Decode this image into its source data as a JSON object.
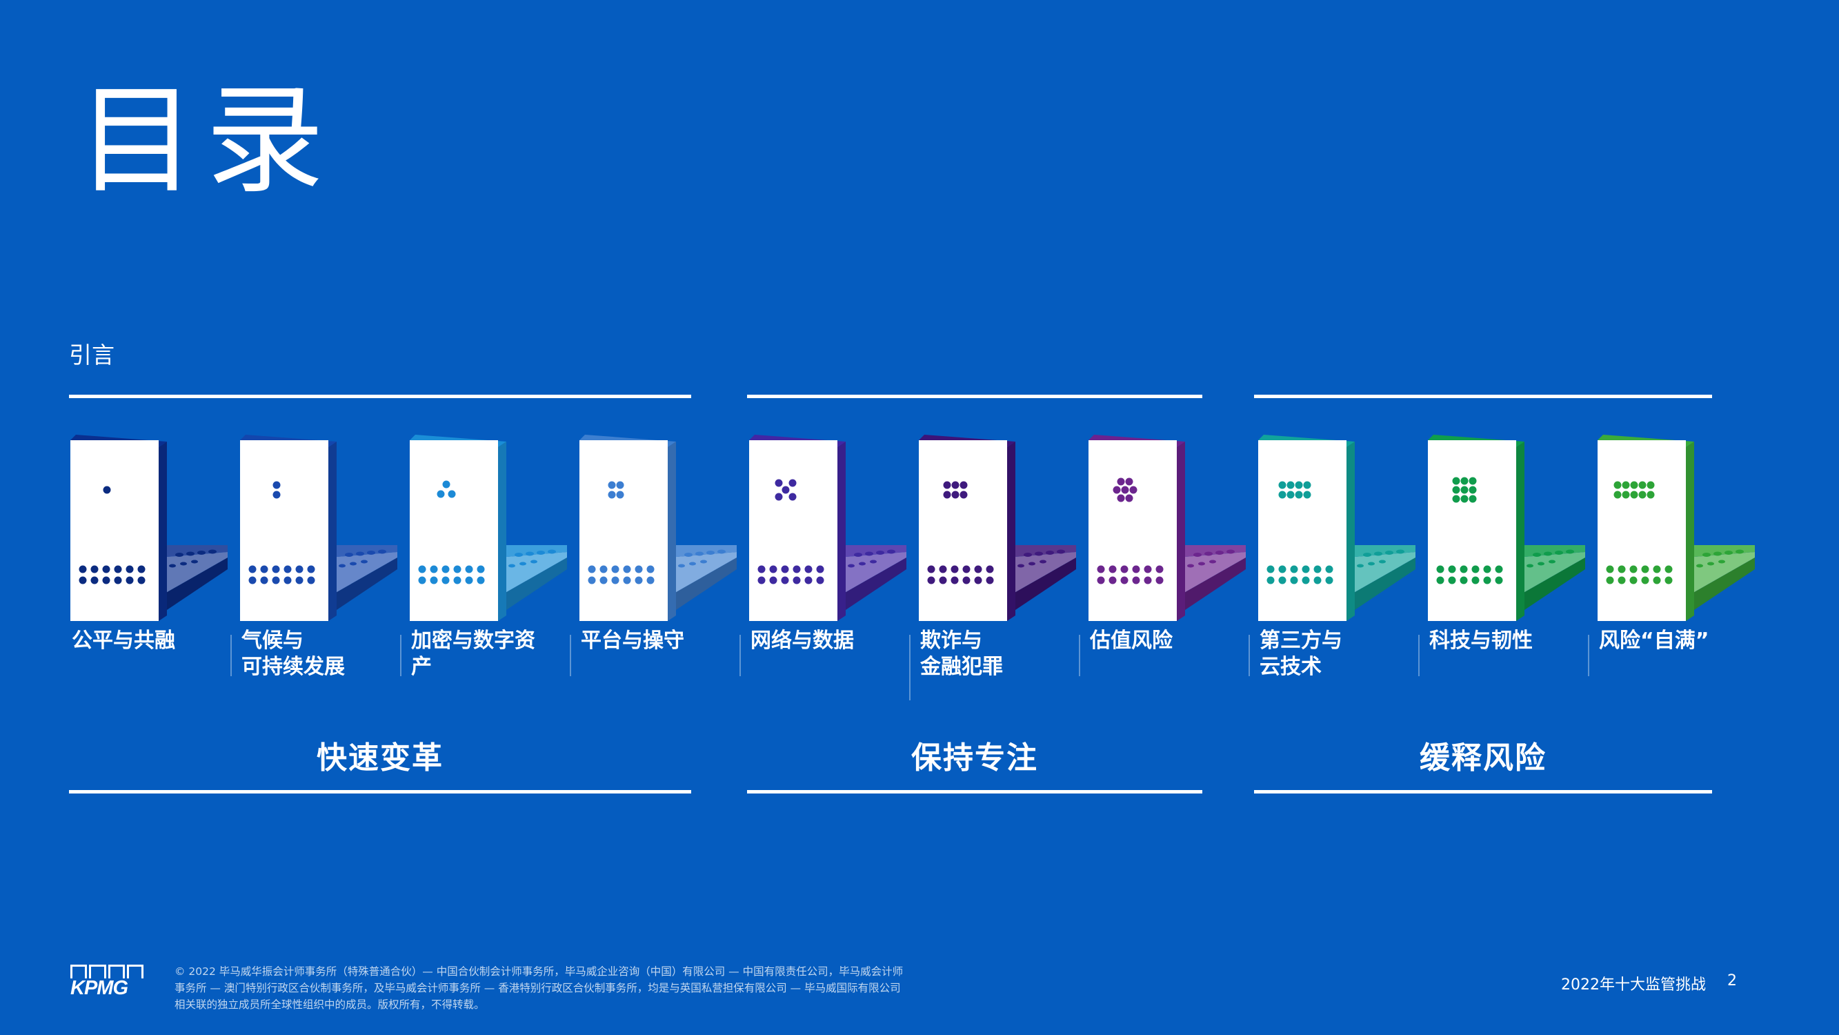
{
  "title": "目录",
  "intro": "引言",
  "topics": [
    {
      "label": "公平与共融",
      "color": "#0a2f8f",
      "dot": "#0b2b80"
    },
    {
      "label": "气候与\n可持续发展",
      "color": "#1346ad",
      "dot": "#1a4aae"
    },
    {
      "label": "加密与数字资\n产",
      "color": "#1a8ed7",
      "dot": "#1c8ad6"
    },
    {
      "label": "平台与操守",
      "color": "#3d7fd0",
      "dot": "#3c7ed1"
    },
    {
      "label": "网络与数据",
      "color": "#4226a4",
      "dot": "#3e2aa0"
    },
    {
      "label": "欺诈与\n金融犯罪",
      "color": "#3c1479",
      "dot": "#3f1a7d"
    },
    {
      "label": "估值风险",
      "color": "#6b228f",
      "dot": "#6c268e"
    },
    {
      "label": "第三方与\n云技术",
      "color": "#10a39b",
      "dot": "#109e98"
    },
    {
      "label": "科技与韧性",
      "color": "#0f9e4b",
      "dot": "#109c4c"
    },
    {
      "label": "风险“自满”",
      "color": "#3aab3a",
      "dot": "#2da437"
    }
  ],
  "groups": [
    {
      "label": "快速变革"
    },
    {
      "label": "保持专注"
    },
    {
      "label": "缓释风险"
    }
  ],
  "footer": {
    "copyright": "© 2022 毕马威华振会计师事务所（特殊普通合伙）— 中国合伙制会计师事务所，毕马威企业咨询（中国）有限公司 — 中国有限责任公司，毕马威会计师事务所 — 澳门特别行政区合伙制事务所，及毕马威会计师事务所 — 香港特别行政区合伙制事务所，均是与英国私营担保有限公司 — 毕马威国际有限公司相关联的独立成员所全球性组织中的成员。版权所有，不得转载。",
    "logo": "KPMG",
    "doc_title": "2022年十大监管挑战",
    "page": "2"
  }
}
